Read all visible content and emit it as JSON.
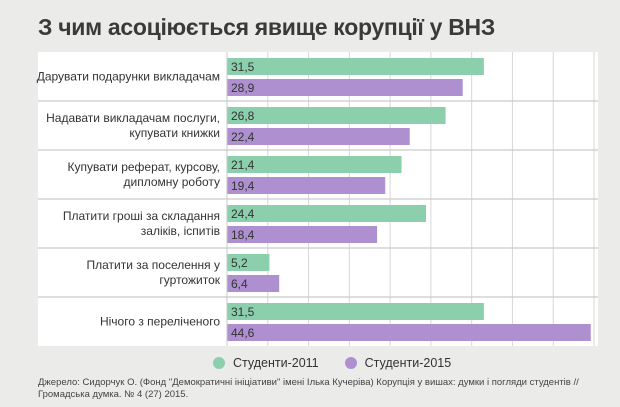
{
  "title": "З чим асоціюється явище корупції у ВНЗ",
  "colors": {
    "s2011": "#8ccfad",
    "s2015": "#ae8fd0",
    "rowBg": "#ffffff",
    "grid": "#d7d7d7",
    "sep": "#c9c9c9"
  },
  "chart_data": {
    "type": "bar",
    "orientation": "horizontal",
    "title": "З чим асоціюється явище корупції у ВНЗ",
    "categories": [
      [
        "Дарувати подарунки викладачам"
      ],
      [
        "Надавати викладачам послуги,",
        "купувати книжки"
      ],
      [
        "Купувати реферат, курсову,",
        "дипломну роботу"
      ],
      [
        "Платити гроші за складання",
        "заліків, іспитів"
      ],
      [
        "Платити за поселення у",
        "гуртожиток"
      ],
      [
        "Нічого з переліченого"
      ]
    ],
    "series": [
      {
        "name": "Студенти-2011",
        "values": [
          "31,5",
          "26,8",
          "21,4",
          "24,4",
          "5,2",
          "31,5"
        ]
      },
      {
        "name": "Студенти-2015",
        "values": [
          "28,9",
          "22,4",
          "19,4",
          "18,4",
          "6,4",
          "44,6"
        ]
      }
    ],
    "xlim": [
      0,
      45
    ],
    "xlabel": "",
    "ylabel": ""
  },
  "legend": {
    "s2011": "Студенти-2011",
    "s2015": "Студенти-2015"
  },
  "source": "Джерело: Сидорчук О. (Фонд \"Демократичні ініціативи\" імені Ілька Кучеріва) Корупція у вишах: думки і погляди студентів // Громадська думка. № 4 (27) 2015."
}
